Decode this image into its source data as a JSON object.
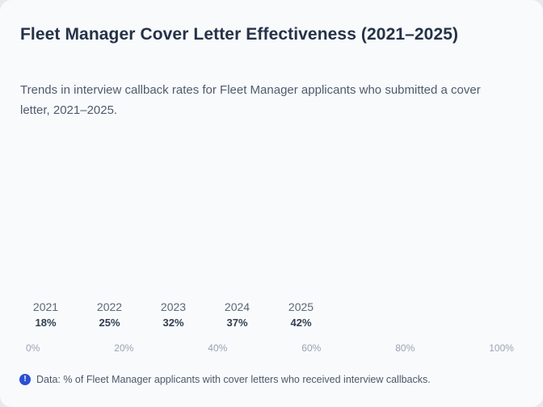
{
  "card": {
    "title": "Fleet Manager Cover Letter Effectiveness (2021–2025)",
    "subtitle": "Trends in interview callback rates for Fleet Manager applicants who submitted a cover letter, 2021–2025.",
    "footnote": {
      "icon": "info-alert-icon",
      "icon_glyph": "!",
      "text": "Data: % of Fleet Manager applicants with cover letters who received interview callbacks."
    }
  },
  "chart_data": {
    "type": "bar",
    "orientation": "horizontal",
    "title": "Fleet Manager Cover Letter Effectiveness (2021–2025)",
    "categories": [
      "2021",
      "2022",
      "2023",
      "2024",
      "2025"
    ],
    "values": [
      18,
      25,
      32,
      37,
      42
    ],
    "value_labels": [
      "18%",
      "25%",
      "32%",
      "37%",
      "42%"
    ],
    "xlabel": "",
    "ylabel": "",
    "xlim": [
      0,
      100
    ],
    "x_ticks": [
      "0%",
      "20%",
      "40%",
      "60%",
      "80%",
      "100%"
    ],
    "grid": "off",
    "legend": "none",
    "note": "plot area renders empty in screenshot; values shown only as text labels"
  },
  "colors": {
    "page_background": "#e7e9ec",
    "card_background": "#f8fafc",
    "title_text": "#253247",
    "subtitle_text": "#4f5b6d",
    "year_label_text": "#5c6877",
    "value_label_text": "#313d51",
    "axis_tick_text": "#9ba3b3",
    "footnote_text": "#4c586a",
    "info_icon_background": "#2a50d3",
    "info_icon_glyph": "#ffffff"
  }
}
